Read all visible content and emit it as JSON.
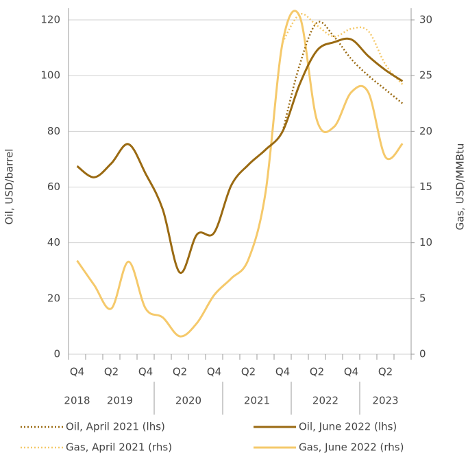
{
  "chart_data": {
    "type": "line",
    "y_label": "Oil, USD/barrel",
    "y2_label": "Gas, USD/MMBtu",
    "categories": [
      "Q4",
      null,
      "Q2",
      null,
      "Q4",
      null,
      "Q2",
      null,
      "Q4",
      null,
      "Q2",
      null,
      "Q4",
      null,
      "Q2",
      null,
      "Q4",
      null,
      "Q2",
      null
    ],
    "category_groups": [
      "2018",
      "2019",
      null,
      null,
      null,
      "2020",
      null,
      null,
      null,
      "2021",
      null,
      null,
      null,
      "2022",
      null,
      null,
      null,
      "2023",
      null,
      null
    ],
    "ylim": [
      0,
      120
    ],
    "yticks": [
      0,
      20,
      40,
      60,
      80,
      100,
      120
    ],
    "y2lim": [
      0,
      30
    ],
    "y2ticks": [
      0,
      5,
      10,
      15,
      20,
      25,
      30
    ],
    "grid": true,
    "series": [
      {
        "name": "Oil, April 2021 (lhs)",
        "color": "#9a6a12",
        "dash": true,
        "axis": "y",
        "values": [
          null,
          null,
          null,
          null,
          null,
          null,
          null,
          null,
          null,
          null,
          null,
          null,
          80,
          104,
          119,
          114,
          106,
          100,
          95,
          90
        ]
      },
      {
        "name": "Oil, June 2022 (lhs)",
        "color": "#9a6a12",
        "dash": false,
        "axis": "y",
        "values": [
          67.5,
          63.5,
          68.5,
          75.4,
          64.8,
          52,
          29.3,
          43,
          43.6,
          60.6,
          68,
          73.4,
          80,
          97,
          109,
          112,
          113,
          107,
          102,
          98
        ]
      },
      {
        "name": "Gas, April 2021 (rhs)",
        "color": "#f5c96b",
        "dash": true,
        "axis": "y2",
        "values": [
          null,
          null,
          null,
          null,
          null,
          null,
          null,
          null,
          null,
          null,
          null,
          null,
          28,
          30.5,
          29.5,
          28.5,
          29.2,
          29,
          26,
          24.2
        ]
      },
      {
        "name": "Gas, June 2022 (rhs)",
        "color": "#f5c96b",
        "dash": false,
        "axis": "y2",
        "values": [
          8.4,
          6.2,
          4.1,
          8.3,
          4.1,
          3.3,
          1.6,
          2.8,
          5.3,
          6.8,
          8.5,
          14.5,
          28,
          30.3,
          21,
          20.4,
          23.5,
          23.5,
          17.7,
          18.9
        ]
      }
    ]
  }
}
